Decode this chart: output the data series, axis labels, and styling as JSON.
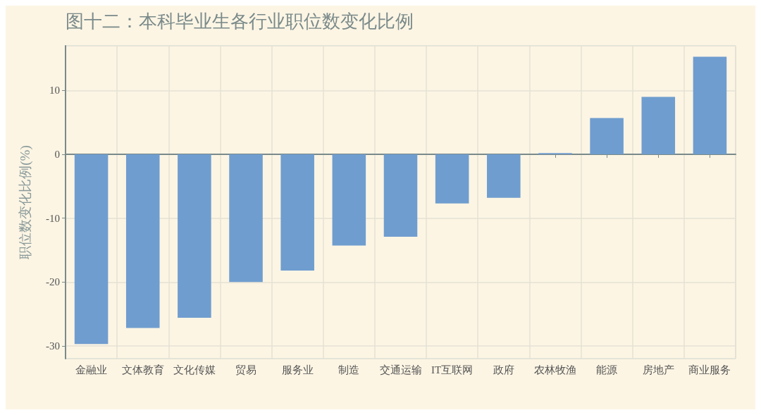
{
  "chart_data": {
    "type": "bar",
    "title": "图十二：本科毕业生各行业职位数变化比例",
    "ylabel": "职位数变化比例(%)",
    "categories": [
      "金融业",
      "文体教育",
      "文化传媒",
      "贸易",
      "服务业",
      "制造",
      "交通运输",
      "IT互联网",
      "政府",
      "农林牧渔",
      "能源",
      "房地产",
      "商业服务"
    ],
    "values": [
      -29.7,
      -27.2,
      -25.6,
      -20,
      -18.2,
      -14.3,
      -12.9,
      -7.7,
      -6.8,
      0.2,
      5.7,
      9,
      15.3
    ],
    "color": "#6f9dcf",
    "ylim": [
      -32,
      17
    ],
    "yticks": [
      -30,
      -20,
      -10,
      0,
      10
    ],
    "grid": true
  }
}
